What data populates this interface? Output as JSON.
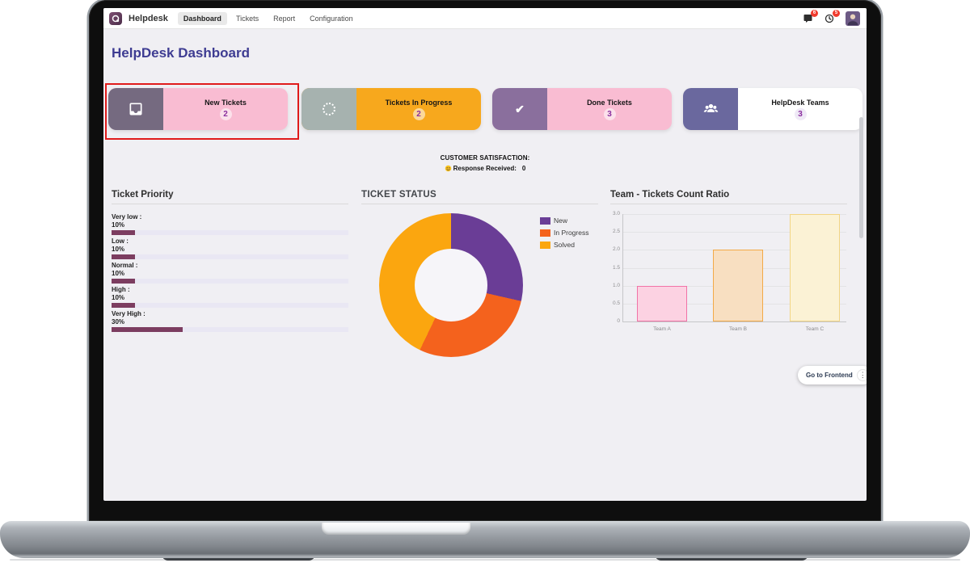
{
  "navbar": {
    "brand": "Helpdesk",
    "menu": [
      "Dashboard",
      "Tickets",
      "Report",
      "Configuration"
    ],
    "active": "Dashboard",
    "messages_badge": "6",
    "activities_badge": "5"
  },
  "page": {
    "title": "HelpDesk Dashboard"
  },
  "stat_cards": [
    {
      "label": "New Tickets",
      "count": "2",
      "icon": "inbox-icon",
      "icon_bg": "#756a80",
      "body_bg": "#f9bcd2",
      "count_bg": "rgba(255,255,255,0.55)",
      "highlighted": true
    },
    {
      "label": "Tickets In Progress",
      "count": "2",
      "icon": "spinner-icon",
      "icon_bg": "#a6b2af",
      "body_bg": "#f7a81d",
      "count_bg": "rgba(255,255,255,0.55)",
      "highlighted": false
    },
    {
      "label": "Done Tickets",
      "count": "3",
      "icon": "check-icon",
      "icon_bg": "#8a6f9d",
      "body_bg": "#f9bcd2",
      "count_bg": "rgba(255,255,255,0.55)",
      "highlighted": false
    },
    {
      "label": "HelpDesk Teams",
      "count": "3",
      "icon": "users-icon",
      "icon_bg": "#6a689e",
      "body_bg": "#ffffff",
      "count_bg": "#efe9f6",
      "highlighted": false
    }
  ],
  "satisfaction": {
    "title": "CUSTOMER SATISFACTION:",
    "label": "Response Received:",
    "value": "0"
  },
  "chart_data": [
    {
      "type": "pie",
      "donut": true,
      "title": "TICKET STATUS",
      "labels": [
        "New",
        "In Progress",
        "Solved"
      ],
      "values": [
        2,
        2,
        3
      ],
      "colors": [
        "#6a3d96",
        "#f4621d",
        "#fba60f"
      ],
      "legend_position": "top-right"
    },
    {
      "type": "bar",
      "title": "Team - Tickets Count Ratio",
      "categories": [
        "Team A",
        "Team B",
        "Team C"
      ],
      "values": [
        1,
        2,
        3
      ],
      "ylim": [
        0,
        3
      ],
      "yticks": [
        "3.0",
        "2.5",
        "2.0",
        "1.5",
        "1.0",
        "0.5",
        "0"
      ],
      "fill_colors": [
        "#fcd2e2",
        "#f8dfc1",
        "#fbf2d5"
      ],
      "border_colors": [
        "#f173a7",
        "#f3aa47",
        "#f2d584"
      ],
      "grid": true
    },
    {
      "type": "bar",
      "orientation": "horizontal",
      "title": "Ticket Priority",
      "categories": [
        "Very low",
        "Low",
        "Normal",
        "High",
        "Very High"
      ],
      "values": [
        10,
        10,
        10,
        10,
        30
      ],
      "unit": "%",
      "bar_color": "#7c3d60",
      "track_color": "#e9e7f3"
    }
  ],
  "frontend_button": {
    "label": "Go to Frontend",
    "menu_icon": "⋮"
  },
  "colors": {
    "page_title": "#3e3c92",
    "screen_bg": "#f0eff3",
    "highlight_red": "#e01b1b",
    "badge_red": "#f03b2e",
    "navbar_active_bg": "#e9e9e9",
    "count_text": "#8a2f9e"
  }
}
